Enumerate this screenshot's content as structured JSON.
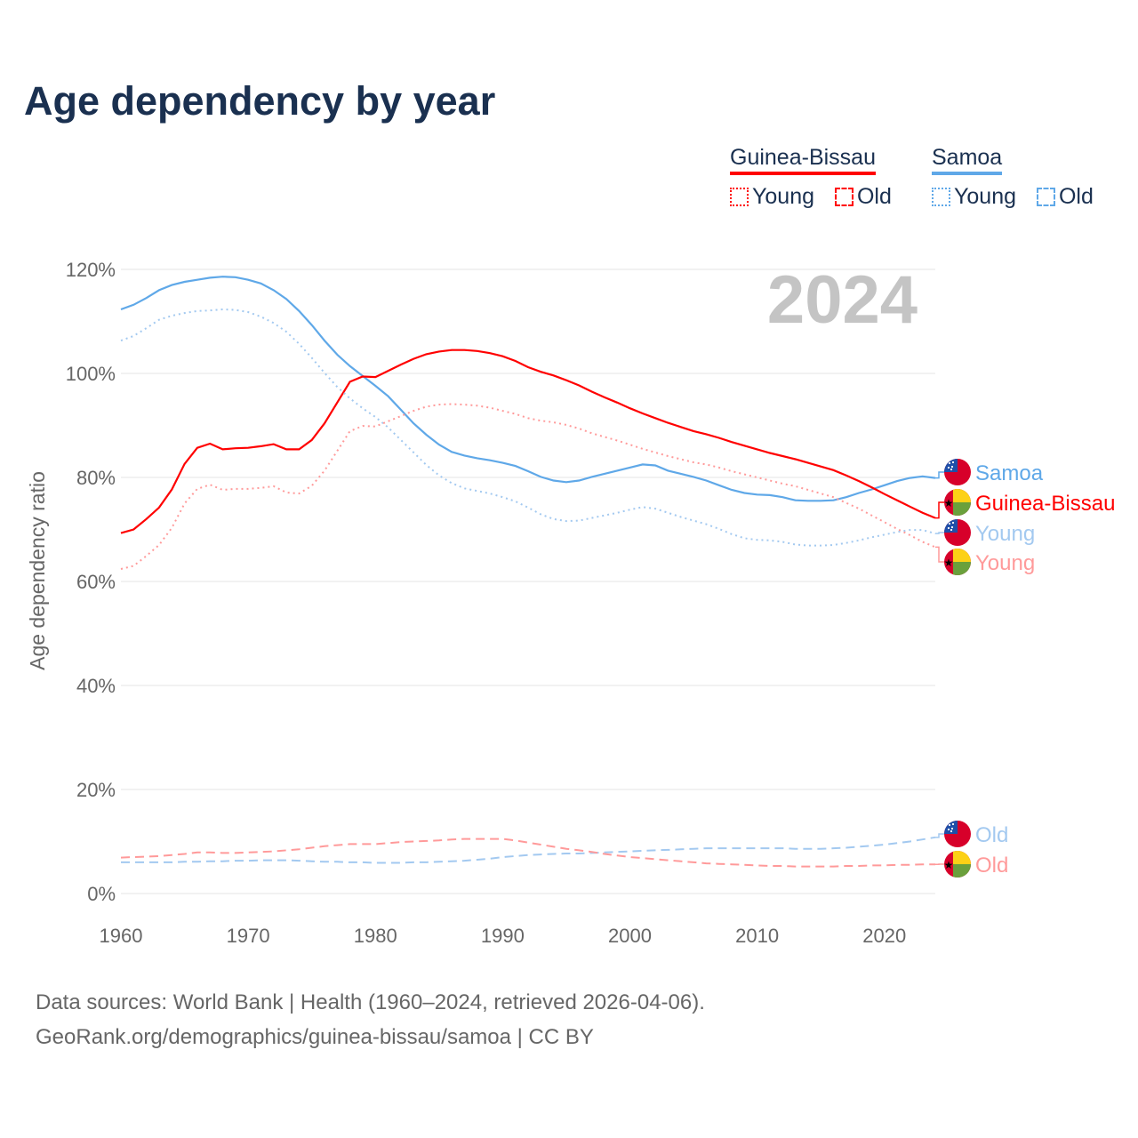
{
  "title": "Age dependency by year",
  "legend": {
    "countries": [
      {
        "name": "Guinea-Bissau",
        "color": "#ff0000",
        "young_label": "Young",
        "old_label": "Old"
      },
      {
        "name": "Samoa",
        "color": "#5fa8e8",
        "young_label": "Young",
        "old_label": "Old"
      }
    ]
  },
  "year_watermark": "2024",
  "source": {
    "line1": "Data sources: World Bank | Health (1960–2024, retrieved 2026-04-06).",
    "line2": "GeoRank.org/demographics/guinea-bissau/samoa | CC BY"
  },
  "chart_data": {
    "type": "line",
    "title": "Age dependency by year",
    "xlabel": "",
    "ylabel": "Age dependency ratio",
    "xlim": [
      1960,
      2024
    ],
    "ylim": [
      0,
      120
    ],
    "x_ticks": [
      "1960",
      "1970",
      "1980",
      "1990",
      "2000",
      "2010",
      "2020"
    ],
    "y_ticks": [
      "0%",
      "20%",
      "40%",
      "60%",
      "80%",
      "100%",
      "120%"
    ],
    "grid": true,
    "x_start": 1960,
    "series": [
      {
        "name": "Samoa",
        "country": "Samoa",
        "kind": "total",
        "end_label": "Samoa",
        "color": "#5fa8e8",
        "values": [
          112.3,
          113.2,
          114.5,
          116,
          117,
          117.6,
          118,
          118.4,
          118.6,
          118.5,
          118,
          117.3,
          116,
          114.3,
          112,
          109.3,
          106.3,
          103.6,
          101.4,
          99.5,
          97.6,
          95.6,
          93,
          90.4,
          88.2,
          86.3,
          84.9,
          84.2,
          83.7,
          83.3,
          82.8,
          82.2,
          81.2,
          80.1,
          79.4,
          79.1,
          79.4,
          80.1,
          80.7,
          81.3,
          81.9,
          82.5,
          82.3,
          81.3,
          80.7,
          80.1,
          79.4,
          78.5,
          77.6,
          77,
          76.7,
          76.6,
          76.2,
          75.6,
          75.5,
          75.5,
          75.6,
          76.2,
          77,
          77.7,
          78.5,
          79.3,
          79.9,
          80.2,
          79.9
        ]
      },
      {
        "name": "Guinea-Bissau",
        "country": "Guinea-Bissau",
        "kind": "total",
        "end_label": "Guinea-Bissau",
        "color": "#ff0000",
        "values": [
          69.3,
          70,
          72,
          74.2,
          77.7,
          82.6,
          85.7,
          86.5,
          85.4,
          85.6,
          85.7,
          86,
          86.4,
          85.4,
          85.4,
          87.2,
          90.4,
          94.4,
          98.4,
          99.4,
          99.3,
          100.5,
          101.7,
          102.8,
          103.7,
          104.2,
          104.5,
          104.5,
          104.3,
          103.9,
          103.3,
          102.4,
          101.2,
          100.3,
          99.6,
          98.7,
          97.7,
          96.5,
          95.4,
          94.4,
          93.3,
          92.3,
          91.4,
          90.5,
          89.7,
          88.9,
          88.3,
          87.6,
          86.8,
          86.1,
          85.4,
          84.7,
          84.1,
          83.5,
          82.8,
          82.1,
          81.4,
          80.4,
          79.3,
          78.1,
          76.8,
          75.6,
          74.4,
          73.2,
          72.2
        ]
      },
      {
        "name": "Samoa Young",
        "country": "Samoa",
        "kind": "young",
        "end_label": "Young",
        "color": "#a3c9f0",
        "values": [
          106.3,
          107.2,
          108.7,
          110.3,
          111.1,
          111.6,
          112,
          112.1,
          112.3,
          112.2,
          111.8,
          110.9,
          109.7,
          108,
          105.7,
          103,
          100.1,
          97.4,
          95.2,
          93.3,
          91.6,
          89.6,
          87.2,
          84.8,
          82.4,
          80.4,
          78.9,
          77.9,
          77.4,
          76.9,
          76.2,
          75.4,
          74.2,
          72.9,
          72,
          71.6,
          71.7,
          72.2,
          72.7,
          73.2,
          73.8,
          74.3,
          74,
          73.2,
          72.4,
          71.7,
          71,
          70.1,
          69.1,
          68.3,
          68,
          67.9,
          67.6,
          67.1,
          66.9,
          66.9,
          67,
          67.4,
          67.9,
          68.5,
          69,
          69.5,
          69.9,
          69.9,
          69.2
        ]
      },
      {
        "name": "Guinea-Bissau Young",
        "country": "Guinea-Bissau",
        "kind": "young",
        "end_label": "Young",
        "color": "#ff9a9a",
        "values": [
          62.4,
          63,
          64.9,
          67,
          70.3,
          75,
          77.8,
          78.6,
          77.6,
          77.8,
          77.8,
          78,
          78.3,
          77.1,
          76.9,
          78.4,
          81.3,
          85.1,
          88.9,
          89.9,
          89.8,
          90.8,
          91.8,
          92.8,
          93.6,
          94,
          94.1,
          94,
          93.8,
          93.4,
          92.8,
          92.2,
          91.4,
          90.9,
          90.6,
          90.1,
          89.4,
          88.5,
          87.8,
          87.1,
          86.3,
          85.5,
          84.8,
          84.1,
          83.5,
          82.9,
          82.5,
          81.9,
          81.2,
          80.6,
          80,
          79.4,
          78.8,
          78.3,
          77.6,
          76.9,
          76.2,
          75.1,
          74,
          72.7,
          71.4,
          70.1,
          68.9,
          67.6,
          66.6
        ]
      },
      {
        "name": "Samoa Old",
        "country": "Samoa",
        "kind": "old",
        "end_label": "Old",
        "color": "#a3c9f0",
        "values": [
          6,
          6,
          6,
          6,
          6,
          6.1,
          6.1,
          6.2,
          6.2,
          6.3,
          6.3,
          6.4,
          6.4,
          6.4,
          6.3,
          6.2,
          6.1,
          6.1,
          6,
          6,
          5.9,
          5.9,
          5.9,
          6,
          6,
          6.1,
          6.2,
          6.3,
          6.5,
          6.7,
          7,
          7.2,
          7.4,
          7.5,
          7.6,
          7.7,
          7.7,
          7.8,
          7.9,
          8,
          8.1,
          8.2,
          8.3,
          8.4,
          8.5,
          8.6,
          8.7,
          8.7,
          8.7,
          8.7,
          8.7,
          8.7,
          8.7,
          8.6,
          8.6,
          8.6,
          8.7,
          8.8,
          9,
          9.2,
          9.4,
          9.7,
          10,
          10.4,
          10.8
        ]
      },
      {
        "name": "Guinea-Bissau Old",
        "country": "Guinea-Bissau",
        "kind": "old",
        "end_label": "Old",
        "color": "#ff9a9a",
        "values": [
          6.9,
          7,
          7.1,
          7.2,
          7.4,
          7.6,
          7.9,
          7.9,
          7.8,
          7.8,
          7.9,
          8,
          8.1,
          8.3,
          8.5,
          8.8,
          9.1,
          9.3,
          9.5,
          9.5,
          9.5,
          9.7,
          9.9,
          10,
          10.1,
          10.2,
          10.4,
          10.5,
          10.5,
          10.5,
          10.5,
          10.2,
          9.8,
          9.4,
          9,
          8.6,
          8.3,
          8,
          7.6,
          7.3,
          7,
          6.8,
          6.6,
          6.4,
          6.2,
          6,
          5.8,
          5.7,
          5.6,
          5.5,
          5.4,
          5.3,
          5.3,
          5.2,
          5.2,
          5.2,
          5.2,
          5.3,
          5.3,
          5.4,
          5.4,
          5.5,
          5.5,
          5.6,
          5.6
        ]
      }
    ]
  }
}
